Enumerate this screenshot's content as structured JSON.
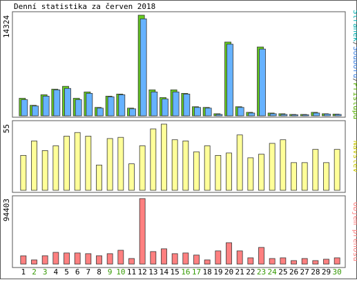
{
  "chart_data": [
    {
      "type": "bar",
      "title": "Denní statistika za červen 2018",
      "ylim": [
        0,
        14324
      ],
      "yticks": [
        14324
      ],
      "legend": [
        {
          "name": "Stránek",
          "color": "#00b0b0"
        },
        {
          "name": "Souborů",
          "color": "#3a7fe0"
        },
        {
          "name": "Přístupů",
          "color": "#55b000"
        }
      ],
      "legend_separator": "/",
      "series": [
        {
          "name": "Přístupů",
          "color": "#66cc22",
          "values": [
            2500,
            1500,
            3000,
            3800,
            4200,
            2500,
            3400,
            1200,
            2800,
            3100,
            1100,
            14324,
            3700,
            2600,
            3700,
            3200,
            1300,
            1200,
            300,
            10500,
            1300,
            500,
            9800,
            400,
            300,
            200,
            200,
            500,
            300,
            250
          ]
        },
        {
          "name": "Souborů",
          "color": "#66b2ff",
          "values": [
            2300,
            1400,
            2800,
            3700,
            3900,
            2300,
            3200,
            1100,
            2700,
            3000,
            1000,
            13800,
            3400,
            2400,
            3400,
            3100,
            1200,
            1100,
            200,
            10200,
            1200,
            400,
            9500,
            300,
            200,
            150,
            150,
            400,
            250,
            200
          ]
        }
      ]
    },
    {
      "type": "bar",
      "label": "Návštěv",
      "label_color": "#c8c800",
      "color": "#ffff99",
      "ylim": [
        0,
        55
      ],
      "yticks": [
        55
      ],
      "values": [
        29,
        41,
        33,
        37,
        45,
        48,
        45,
        21,
        43,
        44,
        22,
        37,
        51,
        55,
        42,
        41,
        32,
        37,
        29,
        31,
        46,
        27,
        30,
        39,
        42,
        23,
        23,
        34,
        23,
        34
      ]
    },
    {
      "type": "bar",
      "label": "Objem přenosu",
      "label_color": "#ff8080",
      "color": "#ff8080",
      "ylim": [
        0,
        94403
      ],
      "yticks": [
        94403
      ],
      "values": [
        11900,
        6000,
        12000,
        16900,
        16000,
        16000,
        15000,
        12000,
        15000,
        19900,
        8000,
        94403,
        18000,
        22000,
        15000,
        16000,
        13000,
        6000,
        19000,
        30800,
        19000,
        9000,
        24000,
        8000,
        9000,
        5000,
        8000,
        5000,
        7000,
        9000
      ],
      "categories": [
        "1",
        "2",
        "3",
        "4",
        "5",
        "6",
        "7",
        "8",
        "9",
        "10",
        "11",
        "12",
        "13",
        "14",
        "15",
        "16",
        "17",
        "18",
        "19",
        "20",
        "21",
        "22",
        "23",
        "24",
        "25",
        "26",
        "27",
        "28",
        "29",
        "30"
      ],
      "weekend": [
        "2",
        "3",
        "9",
        "10",
        "16",
        "17",
        "23",
        "24",
        "30"
      ],
      "weekend_color": "#339900"
    }
  ]
}
